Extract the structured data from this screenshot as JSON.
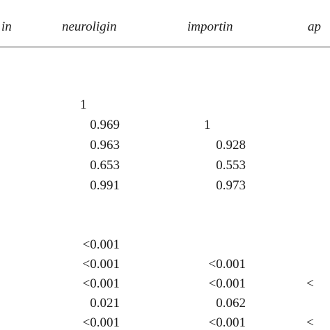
{
  "header": {
    "col0": "in",
    "col1": "neuroligin",
    "col2": "importin",
    "col3": "ap"
  },
  "correlations": [
    {
      "neuroligin": "1",
      "importin": "",
      "ap": ""
    },
    {
      "neuroligin": "0.969",
      "importin": "1",
      "ap": ""
    },
    {
      "neuroligin": "0.963",
      "importin": "0.928",
      "ap": ""
    },
    {
      "neuroligin": "0.653",
      "importin": "0.553",
      "ap": ""
    },
    {
      "neuroligin": "0.991",
      "importin": "0.973",
      "ap": ""
    }
  ],
  "p_values": [
    {
      "neuroligin": "<0.001",
      "importin": "",
      "ap": ""
    },
    {
      "neuroligin": "<0.001",
      "importin": "<0.001",
      "ap": ""
    },
    {
      "neuroligin": "<0.001",
      "importin": "<0.001",
      "ap": "<"
    },
    {
      "neuroligin": "0.021",
      "importin": "0.062",
      "ap": ""
    },
    {
      "neuroligin": "<0.001",
      "importin": "<0.001",
      "ap": "<"
    }
  ]
}
